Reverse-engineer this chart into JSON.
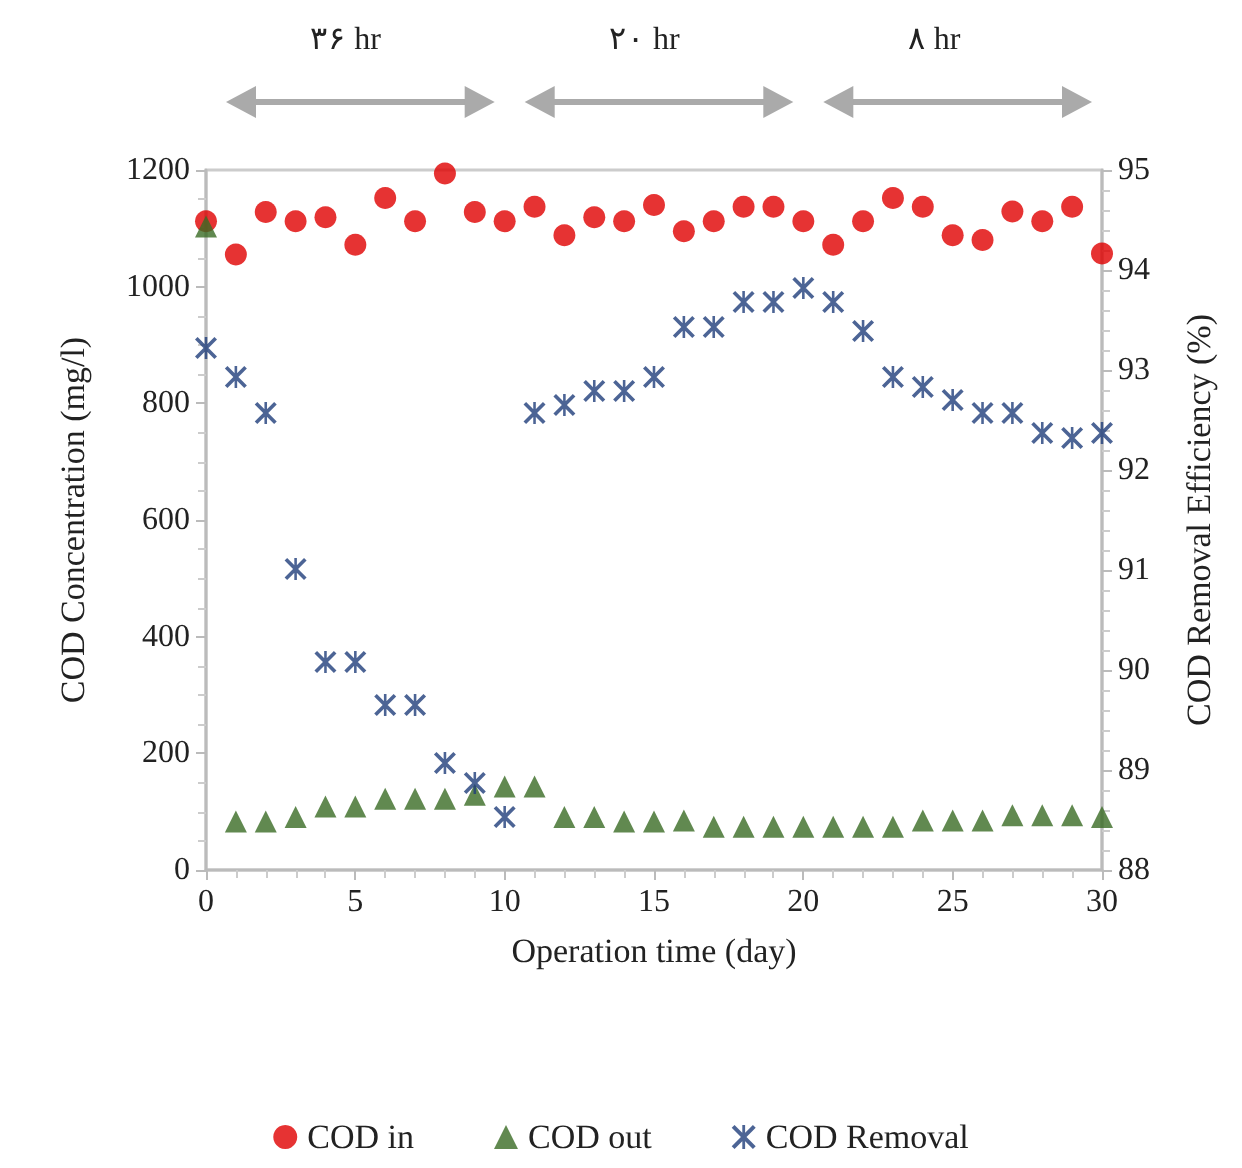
{
  "chart_data": {
    "type": "scatter",
    "xlabel": "Operation time (day)",
    "ylabel": "COD Concentration (mg/l)",
    "y2label": "COD Removal Efficiency (%)",
    "annotations": [
      "۳۶ hr",
      "۲۰ hr",
      "۸ hr"
    ],
    "x": [
      0,
      1,
      2,
      3,
      4,
      5,
      6,
      7,
      8,
      9,
      10,
      11,
      12,
      13,
      14,
      15,
      16,
      17,
      18,
      19,
      20,
      21,
      22,
      23,
      24,
      25,
      26,
      27,
      28,
      29,
      30
    ],
    "series": [
      {
        "name": "COD in",
        "color": "#e00000",
        "marker": "circle",
        "values": [
          1112,
          1055,
          1128,
          1112,
          1119,
          1072,
          1152,
          1112,
          1194,
          1128,
          1112,
          1137,
          1088,
          1119,
          1112,
          1140,
          1095,
          1112,
          1137,
          1137,
          1112,
          1072,
          1112,
          1152,
          1137,
          1088,
          1080,
          1129,
          1112,
          1137,
          1057
        ]
      },
      {
        "name": "COD out",
        "color": "#3a6b24",
        "marker": "triangle",
        "values": [
          1103,
          83,
          83,
          91,
          109,
          109,
          122,
          122,
          122,
          129,
          143,
          143,
          91,
          91,
          83,
          83,
          85,
          74,
          74,
          74,
          74,
          74,
          74,
          74,
          85,
          85,
          85,
          94,
          94,
          94,
          91
        ]
      },
      {
        "name": "COD Removal",
        "color": "#1f3d7a",
        "marker": "cross",
        "axis": "y2",
        "values": [
          93.22,
          92.93,
          92.57,
          91.01,
          90.08,
          90.08,
          89.65,
          89.65,
          89.07,
          88.87,
          88.53,
          92.57,
          92.65,
          92.79,
          92.79,
          92.93,
          93.43,
          93.43,
          93.68,
          93.68,
          93.82,
          93.68,
          93.39,
          92.93,
          92.83,
          92.7,
          92.57,
          92.57,
          92.37,
          92.32,
          92.37
        ]
      }
    ],
    "xlim": [
      0,
      30
    ],
    "xticks": [
      0,
      5,
      10,
      15,
      20,
      25,
      30
    ],
    "ylim": [
      0,
      1200
    ],
    "yticks": [
      0,
      200,
      400,
      600,
      800,
      1000,
      1200
    ],
    "y2lim": [
      88,
      95
    ],
    "y2ticks": [
      88,
      89,
      90,
      91,
      92,
      93,
      94,
      95
    ],
    "grid": false,
    "legend": "bottom"
  }
}
